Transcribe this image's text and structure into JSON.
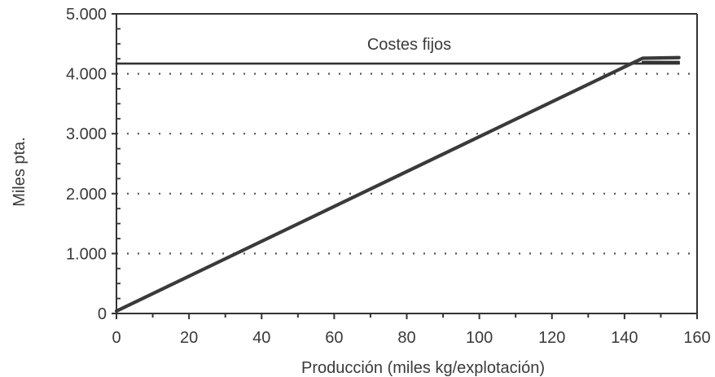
{
  "chart_data": {
    "type": "line",
    "title": "",
    "xlabel": "Producción (miles kg/explotación)",
    "ylabel": "Miles pta.",
    "xlim": [
      0,
      160
    ],
    "ylim": [
      0,
      5000
    ],
    "x_ticks": [
      0,
      20,
      40,
      60,
      80,
      100,
      120,
      140,
      160
    ],
    "x_tick_labels": [
      "0",
      "20",
      "40",
      "60",
      "80",
      "100",
      "120",
      "140",
      "160"
    ],
    "y_ticks": [
      0,
      1000,
      2000,
      3000,
      4000,
      5000
    ],
    "y_tick_labels": [
      "0",
      "1.000",
      "2.000",
      "3.000",
      "4.000",
      "5.000"
    ],
    "grid": {
      "horizontal": "dotted",
      "vertical": false
    },
    "series": [
      {
        "name": "Costes fijos",
        "x": [
          0,
          155
        ],
        "y": [
          4170,
          4170
        ],
        "color": "#333333"
      },
      {
        "x": [
          0,
          145,
          155
        ],
        "y": [
          40,
          4260,
          4270
        ],
        "color": "#3a3a3a"
      },
      {
        "x": [
          145,
          155
        ],
        "y": [
          4200,
          4200
        ],
        "color": "#333333"
      }
    ],
    "annotations": [
      {
        "text": "Costes fijos",
        "x": 80,
        "y": 4500
      }
    ]
  }
}
